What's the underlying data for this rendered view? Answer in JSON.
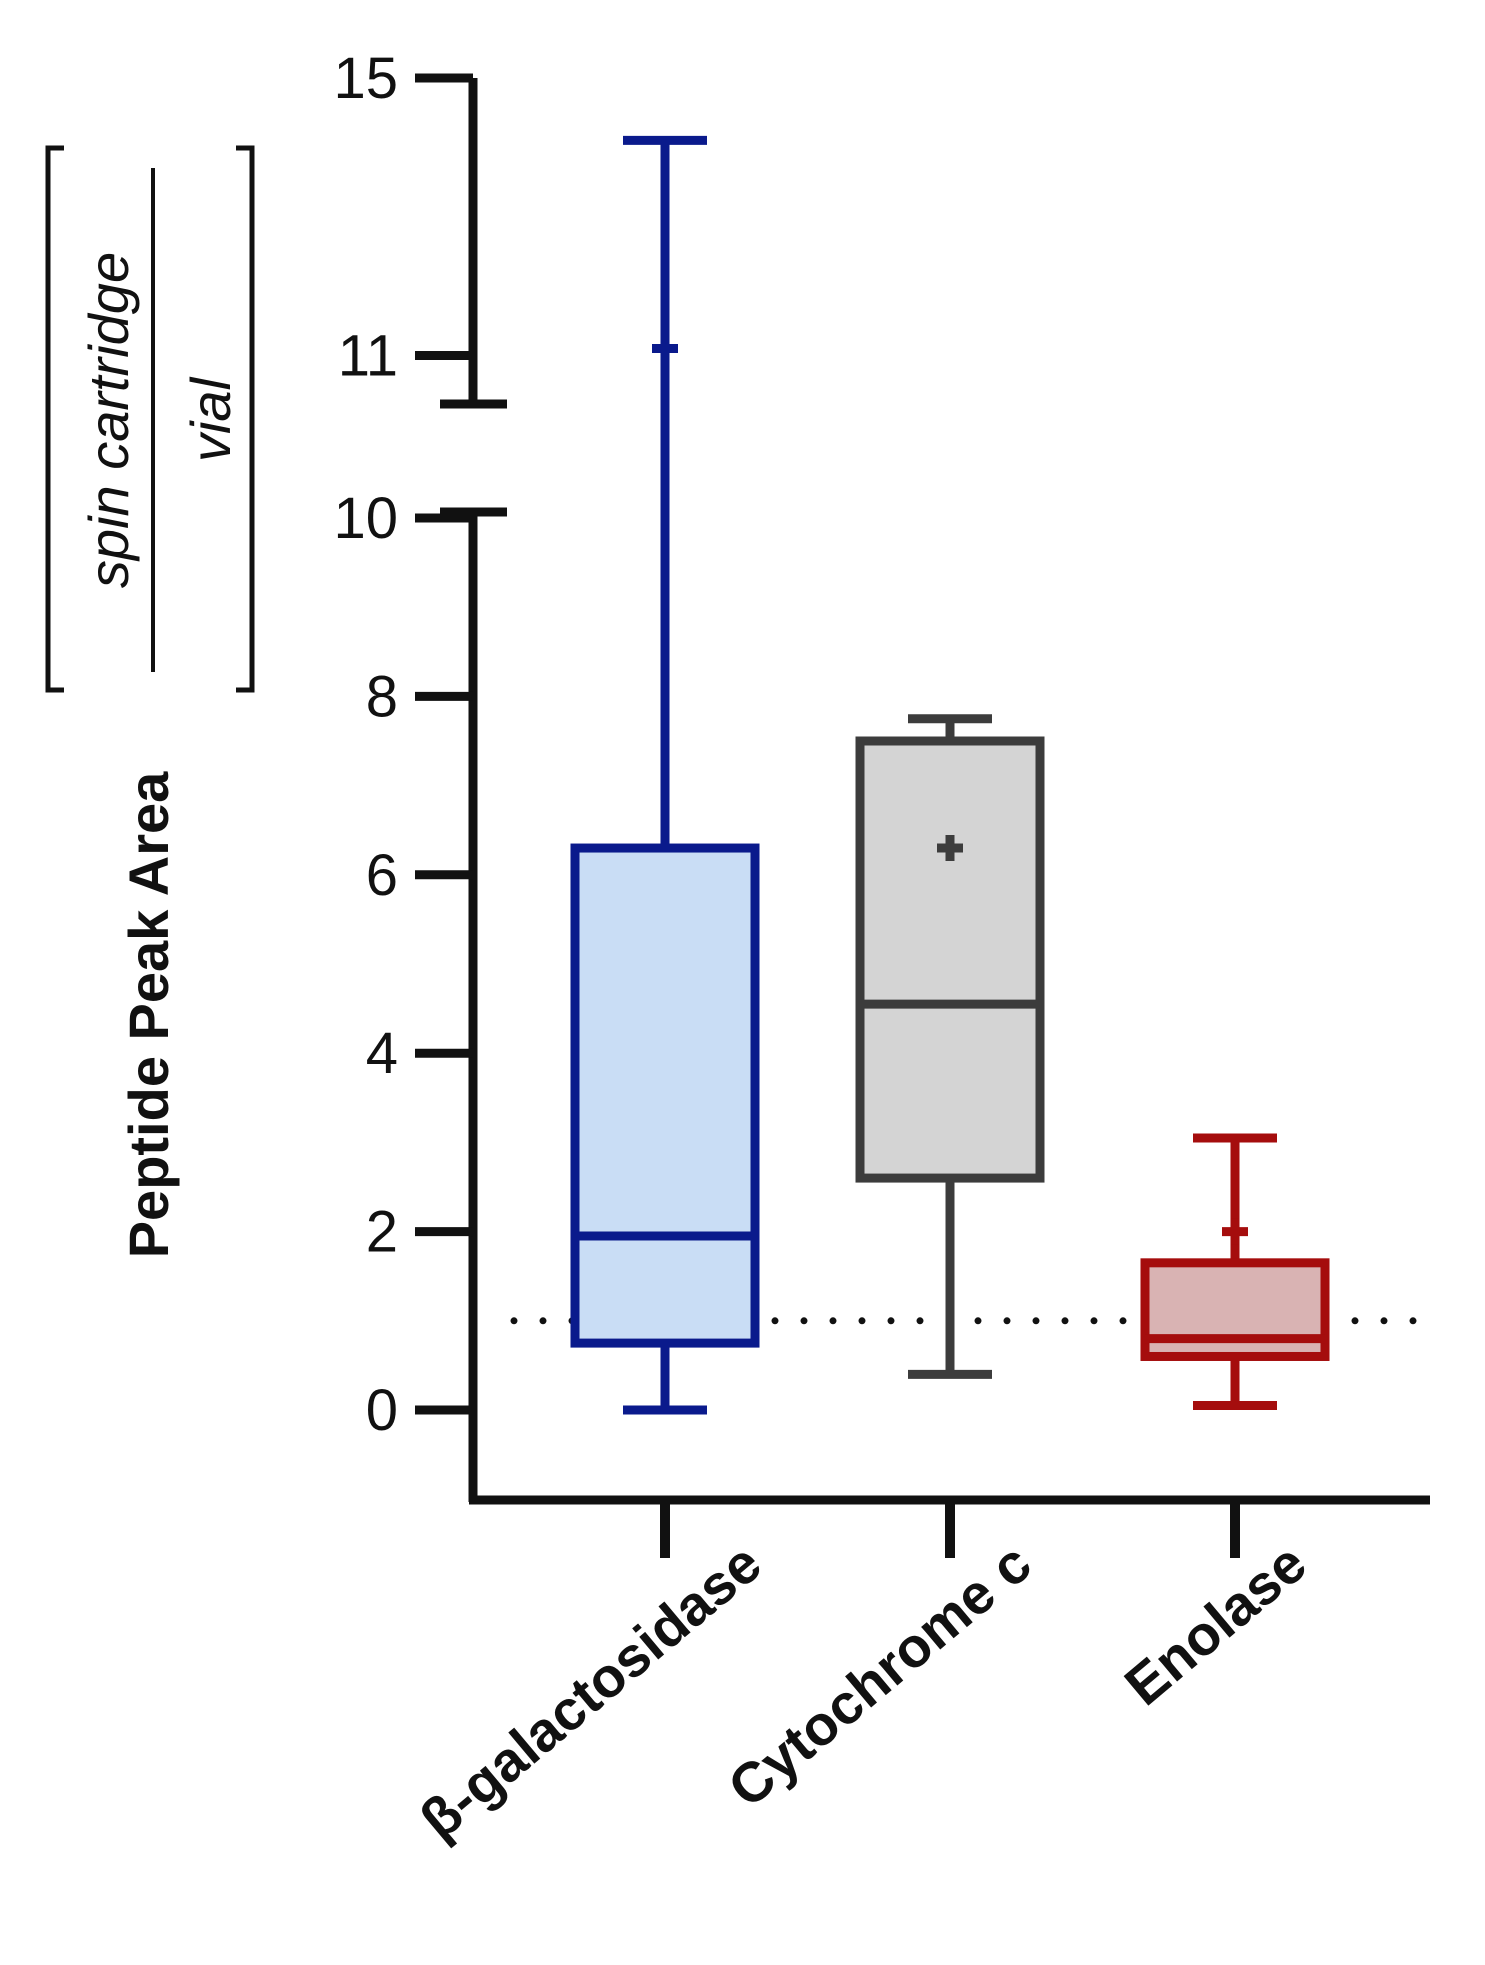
{
  "chart_data": {
    "type": "box",
    "title": "",
    "ylabel": {
      "main": "Peptide Peak Area",
      "numerator": "spin cartridge",
      "denominator": "vial"
    },
    "xlabel": "",
    "y_axis": {
      "broken": true,
      "lower_segment": [
        0,
        10
      ],
      "upper_segment": [
        10.3,
        15
      ],
      "ticks": [
        0,
        2,
        4,
        6,
        8,
        10,
        11,
        15
      ],
      "tick_labels": [
        "0",
        "2",
        "4",
        "6",
        "8",
        "10",
        "11",
        "15"
      ]
    },
    "reference_line": {
      "y": 1,
      "style": "dotted"
    },
    "grid": false,
    "legend": "none",
    "categories": [
      "β-galactosidase",
      "Cytochrome c",
      "Enolase"
    ],
    "series": [
      {
        "category": "β-galactosidase",
        "min": 0,
        "q1": 0.75,
        "median": 1.95,
        "q3": 6.3,
        "max": 14.1,
        "mean": 11.1,
        "stroke": "#0a1a8c",
        "fill": "#c9ddf5"
      },
      {
        "category": "Cytochrome c",
        "min": 0.4,
        "q1": 2.6,
        "median": 4.55,
        "q3": 7.5,
        "max": 7.75,
        "mean": 6.3,
        "stroke": "#3c3c3c",
        "fill": "#d4d4d4"
      },
      {
        "category": "Enolase",
        "min": 0.05,
        "q1": 0.6,
        "median": 0.8,
        "q3": 1.65,
        "max": 3.05,
        "mean": 2.0,
        "stroke": "#a50d0d",
        "fill": "#d9b3b3"
      }
    ]
  }
}
